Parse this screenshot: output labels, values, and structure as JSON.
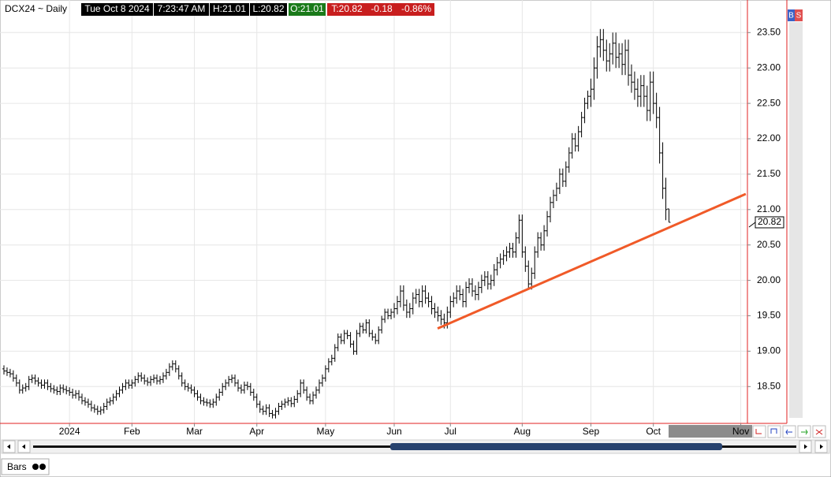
{
  "header": {
    "symbol": "DCX24 ~ Daily",
    "date": "Tue Oct 8 2024",
    "time": "7:23:47 AM",
    "high": "H:21.01",
    "low": "L:20.82",
    "open": "O:21.01",
    "last": "T:20.82",
    "change": "-0.18",
    "change_pct": "-0.86%"
  },
  "toolbar": {
    "buy": "B",
    "sell": "S"
  },
  "footer": {
    "tab": "Bars"
  },
  "chart_data": {
    "type": "ohlc",
    "color": "#000000",
    "grid": true,
    "xlim": [
      -1.26,
      238.13
    ],
    "ylim": [
      17.98,
      23.96
    ],
    "xticks": [
      {
        "value": 21,
        "label": "2024"
      },
      {
        "value": 41,
        "label": "Feb"
      },
      {
        "value": 61,
        "label": "Mar"
      },
      {
        "value": 81,
        "label": "Apr"
      },
      {
        "value": 103,
        "label": "May"
      },
      {
        "value": 125,
        "label": "Jun"
      },
      {
        "value": 143,
        "label": "Jul"
      },
      {
        "value": 166,
        "label": "Aug"
      },
      {
        "value": 188,
        "label": "Sep"
      },
      {
        "value": 208,
        "label": "Oct"
      },
      {
        "value": 236,
        "label": "Nov"
      }
    ],
    "yticks": [
      {
        "value": 18.5,
        "label": "18.50"
      },
      {
        "value": 19,
        "label": "19.00"
      },
      {
        "value": 19.5,
        "label": "19.50"
      },
      {
        "value": 20,
        "label": "20.00"
      },
      {
        "value": 20.5,
        "label": "20.50"
      },
      {
        "value": 21,
        "label": "21.00"
      },
      {
        "value": 21.5,
        "label": "21.50"
      },
      {
        "value": 22,
        "label": "22.00"
      },
      {
        "value": 22.5,
        "label": "22.50"
      },
      {
        "value": 23,
        "label": "23.00"
      },
      {
        "value": 23.5,
        "label": "23.50"
      }
    ],
    "open": [
      18.75,
      18.72,
      18.7,
      18.68,
      18.62,
      18.55,
      18.45,
      18.48,
      18.5,
      18.6,
      18.62,
      18.58,
      18.55,
      18.52,
      18.55,
      18.5,
      18.47,
      18.45,
      18.43,
      18.48,
      18.46,
      18.44,
      18.42,
      18.38,
      18.4,
      18.35,
      18.3,
      18.28,
      18.25,
      18.2,
      18.18,
      18.15,
      18.17,
      18.22,
      18.28,
      18.3,
      18.35,
      18.4,
      18.45,
      18.5,
      18.55,
      18.52,
      18.55,
      18.6,
      18.65,
      18.62,
      18.58,
      18.56,
      18.6,
      18.62,
      18.58,
      18.6,
      18.65,
      18.7,
      18.78,
      18.82,
      18.75,
      18.65,
      18.55,
      18.5,
      18.48,
      18.45,
      18.4,
      18.35,
      18.3,
      18.28,
      18.27,
      18.25,
      18.28,
      18.35,
      18.42,
      18.5,
      18.55,
      18.6,
      18.62,
      18.55,
      18.48,
      18.45,
      18.52,
      18.5,
      18.42,
      18.35,
      18.25,
      18.18,
      18.15,
      18.2,
      18.12,
      18.1,
      18.15,
      18.22,
      18.25,
      18.28,
      18.3,
      18.26,
      18.32,
      18.4,
      18.55,
      18.45,
      18.35,
      18.3,
      18.38,
      18.45,
      18.55,
      18.62,
      18.75,
      18.85,
      18.9,
      19.05,
      19.2,
      19.15,
      19.25,
      19.22,
      19.1,
      19.0,
      19.25,
      19.35,
      19.3,
      19.4,
      19.25,
      19.2,
      19.15,
      19.3,
      19.45,
      19.55,
      19.5,
      19.55,
      19.6,
      19.7,
      19.85,
      19.65,
      19.55,
      19.6,
      19.75,
      19.8,
      19.7,
      19.85,
      19.75,
      19.7,
      19.6,
      19.55,
      19.5,
      19.45,
      19.4,
      19.55,
      19.7,
      19.75,
      19.85,
      19.8,
      19.7,
      19.9,
      19.95,
      19.85,
      19.8,
      19.9,
      20.0,
      20.05,
      19.95,
      20.0,
      20.15,
      20.25,
      20.3,
      20.35,
      20.4,
      20.45,
      20.4,
      20.6,
      20.85,
      20.4,
      20.2,
      19.95,
      20.1,
      20.4,
      20.6,
      20.5,
      20.7,
      20.9,
      21.1,
      21.2,
      21.3,
      21.5,
      21.4,
      21.6,
      21.8,
      22.0,
      21.9,
      22.1,
      22.3,
      22.5,
      22.6,
      22.7,
      23.0,
      23.3,
      23.4,
      23.25,
      23.1,
      23.2,
      23.35,
      23.15,
      23.2,
      23.05,
      23.25,
      22.9,
      22.8,
      22.7,
      22.6,
      22.75,
      22.6,
      22.4,
      22.8,
      22.5,
      22.3,
      21.8,
      21.3,
      21.01
    ],
    "high": [
      18.8,
      18.77,
      18.75,
      18.73,
      18.67,
      18.6,
      18.53,
      18.55,
      18.65,
      18.67,
      18.67,
      18.63,
      18.6,
      18.6,
      18.6,
      18.55,
      18.52,
      18.5,
      18.53,
      18.53,
      18.51,
      18.49,
      18.47,
      18.45,
      18.45,
      18.4,
      18.35,
      18.33,
      18.3,
      18.25,
      18.23,
      18.22,
      18.27,
      18.33,
      18.35,
      18.4,
      18.45,
      18.5,
      18.55,
      18.6,
      18.6,
      18.6,
      18.65,
      18.7,
      18.7,
      18.67,
      18.63,
      18.65,
      18.67,
      18.67,
      18.65,
      18.7,
      18.75,
      18.83,
      18.87,
      18.87,
      18.8,
      18.7,
      18.6,
      18.55,
      18.53,
      18.5,
      18.45,
      18.4,
      18.35,
      18.33,
      18.32,
      18.33,
      18.4,
      18.47,
      18.55,
      18.6,
      18.65,
      18.67,
      18.67,
      18.6,
      18.53,
      18.57,
      18.57,
      18.55,
      18.47,
      18.4,
      18.3,
      18.23,
      18.25,
      18.25,
      18.17,
      18.2,
      18.27,
      18.3,
      18.33,
      18.35,
      18.35,
      18.37,
      18.45,
      18.6,
      18.6,
      18.5,
      18.4,
      18.43,
      18.5,
      18.6,
      18.67,
      18.8,
      18.9,
      18.95,
      19.1,
      19.25,
      19.25,
      19.3,
      19.3,
      19.27,
      19.15,
      19.3,
      19.4,
      19.4,
      19.45,
      19.45,
      19.3,
      19.25,
      19.35,
      19.5,
      19.6,
      19.6,
      19.6,
      19.68,
      19.78,
      19.93,
      19.93,
      19.73,
      19.68,
      19.83,
      19.88,
      19.88,
      19.93,
      19.93,
      19.83,
      19.78,
      19.68,
      19.63,
      19.58,
      19.53,
      19.63,
      19.78,
      19.83,
      19.93,
      19.93,
      19.88,
      19.98,
      20.03,
      20.03,
      19.93,
      19.98,
      20.08,
      20.13,
      20.13,
      20.08,
      20.23,
      20.33,
      20.38,
      20.43,
      20.48,
      20.53,
      20.53,
      20.68,
      20.93,
      20.93,
      20.48,
      20.28,
      20.18,
      20.48,
      20.68,
      20.68,
      20.78,
      20.98,
      21.18,
      21.28,
      21.38,
      21.58,
      21.58,
      21.68,
      21.88,
      22.08,
      22.08,
      22.18,
      22.38,
      22.58,
      22.68,
      22.85,
      23.15,
      23.45,
      23.55,
      23.55,
      23.4,
      23.35,
      23.5,
      23.5,
      23.35,
      23.35,
      23.4,
      23.4,
      23.05,
      22.95,
      22.85,
      22.9,
      22.9,
      22.75,
      22.95,
      22.95,
      22.65,
      22.45,
      21.95,
      21.45,
      21.01
    ],
    "low": [
      18.67,
      18.65,
      18.63,
      18.57,
      18.5,
      18.4,
      18.4,
      18.43,
      18.45,
      18.55,
      18.53,
      18.5,
      18.47,
      18.47,
      18.45,
      18.42,
      18.4,
      18.38,
      18.38,
      18.41,
      18.39,
      18.37,
      18.33,
      18.33,
      18.3,
      18.25,
      18.23,
      18.2,
      18.15,
      18.13,
      18.1,
      18.1,
      18.12,
      18.17,
      18.23,
      18.25,
      18.3,
      18.35,
      18.4,
      18.45,
      18.47,
      18.47,
      18.5,
      18.55,
      18.57,
      18.53,
      18.51,
      18.51,
      18.55,
      18.53,
      18.53,
      18.55,
      18.6,
      18.65,
      18.73,
      18.7,
      18.6,
      18.5,
      18.45,
      18.43,
      18.4,
      18.35,
      18.3,
      18.25,
      18.23,
      18.22,
      18.2,
      18.2,
      18.23,
      18.3,
      18.37,
      18.45,
      18.5,
      18.55,
      18.5,
      18.43,
      18.4,
      18.4,
      18.45,
      18.37,
      18.3,
      18.2,
      18.13,
      18.1,
      18.1,
      18.07,
      18.05,
      18.05,
      18.1,
      18.17,
      18.2,
      18.23,
      18.21,
      18.21,
      18.27,
      18.35,
      18.4,
      18.3,
      18.25,
      18.25,
      18.33,
      18.4,
      18.5,
      18.57,
      18.7,
      18.8,
      18.85,
      19.0,
      19.1,
      19.1,
      19.17,
      19.05,
      18.95,
      18.95,
      19.2,
      19.25,
      19.25,
      19.2,
      19.15,
      19.1,
      19.1,
      19.25,
      19.4,
      19.45,
      19.45,
      19.47,
      19.52,
      19.62,
      19.57,
      19.47,
      19.47,
      19.52,
      19.67,
      19.62,
      19.62,
      19.67,
      19.62,
      19.52,
      19.47,
      19.42,
      19.37,
      19.32,
      19.32,
      19.47,
      19.62,
      19.67,
      19.72,
      19.62,
      19.62,
      19.82,
      19.77,
      19.72,
      19.72,
      19.82,
      19.92,
      19.87,
      19.87,
      19.92,
      20.07,
      20.17,
      20.22,
      20.27,
      20.32,
      20.32,
      20.32,
      20.52,
      20.32,
      20.12,
      19.87,
      19.87,
      20.02,
      20.32,
      20.42,
      20.42,
      20.62,
      20.82,
      21.02,
      21.12,
      21.22,
      21.32,
      21.32,
      21.52,
      21.72,
      21.82,
      21.82,
      22.02,
      22.22,
      22.42,
      22.45,
      22.55,
      22.85,
      23.15,
      23.1,
      22.95,
      22.95,
      23.05,
      23.0,
      23.0,
      22.9,
      22.9,
      22.75,
      22.65,
      22.55,
      22.45,
      22.45,
      22.45,
      22.25,
      22.25,
      22.35,
      22.15,
      21.65,
      21.15,
      20.85,
      20.82
    ],
    "close": [
      18.72,
      18.7,
      18.68,
      18.62,
      18.55,
      18.45,
      18.48,
      18.5,
      18.6,
      18.62,
      18.58,
      18.55,
      18.52,
      18.55,
      18.5,
      18.47,
      18.45,
      18.43,
      18.48,
      18.46,
      18.44,
      18.42,
      18.38,
      18.4,
      18.35,
      18.3,
      18.28,
      18.25,
      18.2,
      18.18,
      18.15,
      18.17,
      18.22,
      18.28,
      18.3,
      18.35,
      18.4,
      18.45,
      18.5,
      18.55,
      18.52,
      18.55,
      18.6,
      18.65,
      18.62,
      18.58,
      18.56,
      18.6,
      18.62,
      18.58,
      18.6,
      18.65,
      18.7,
      18.78,
      18.82,
      18.75,
      18.65,
      18.55,
      18.5,
      18.48,
      18.45,
      18.4,
      18.35,
      18.3,
      18.28,
      18.27,
      18.25,
      18.28,
      18.35,
      18.42,
      18.5,
      18.55,
      18.6,
      18.62,
      18.55,
      18.48,
      18.45,
      18.52,
      18.5,
      18.42,
      18.35,
      18.25,
      18.18,
      18.15,
      18.2,
      18.12,
      18.1,
      18.15,
      18.22,
      18.25,
      18.28,
      18.3,
      18.26,
      18.32,
      18.4,
      18.55,
      18.45,
      18.35,
      18.3,
      18.38,
      18.45,
      18.55,
      18.62,
      18.75,
      18.85,
      18.9,
      19.05,
      19.2,
      19.15,
      19.25,
      19.22,
      19.1,
      19.0,
      19.25,
      19.35,
      19.3,
      19.4,
      19.25,
      19.2,
      19.15,
      19.3,
      19.45,
      19.55,
      19.5,
      19.55,
      19.6,
      19.7,
      19.85,
      19.65,
      19.55,
      19.6,
      19.75,
      19.8,
      19.7,
      19.85,
      19.75,
      19.7,
      19.6,
      19.55,
      19.5,
      19.45,
      19.4,
      19.55,
      19.7,
      19.75,
      19.85,
      19.8,
      19.7,
      19.9,
      19.95,
      19.85,
      19.8,
      19.9,
      20.0,
      20.05,
      19.95,
      20.0,
      20.15,
      20.25,
      20.3,
      20.35,
      20.4,
      20.45,
      20.4,
      20.6,
      20.85,
      20.4,
      20.2,
      19.95,
      20.1,
      20.4,
      20.6,
      20.5,
      20.7,
      20.9,
      21.1,
      21.2,
      21.3,
      21.5,
      21.4,
      21.6,
      21.8,
      22.0,
      21.9,
      22.1,
      22.3,
      22.5,
      22.6,
      22.7,
      23.0,
      23.3,
      23.4,
      23.25,
      23.1,
      23.2,
      23.35,
      23.15,
      23.2,
      23.05,
      23.25,
      22.9,
      22.8,
      22.7,
      22.6,
      22.75,
      22.6,
      22.4,
      22.8,
      22.5,
      22.3,
      21.8,
      21.3,
      21.0,
      20.82
    ],
    "trendline": {
      "color": "#f05a28",
      "x": [
        138.9,
        237.6
      ],
      "y": [
        19.32,
        21.22
      ]
    }
  }
}
